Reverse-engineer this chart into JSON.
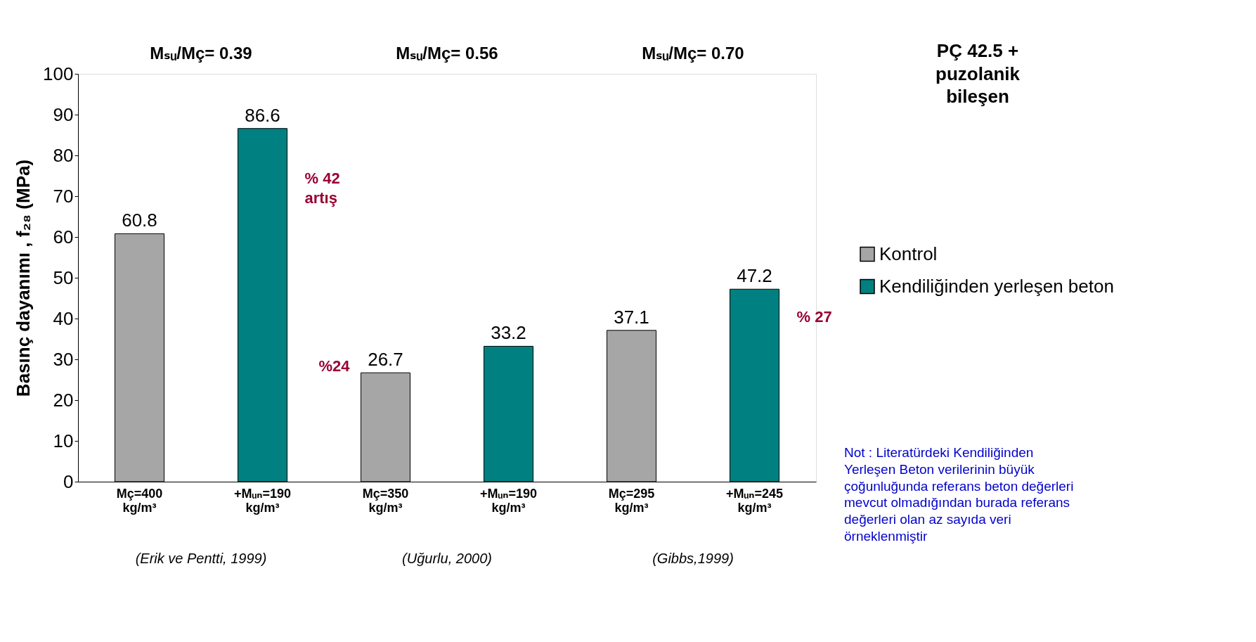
{
  "chart_data": {
    "type": "bar",
    "ylabel": "Basınç dayanımı , f₂₈  (MPa)",
    "categories": [
      "Mç=400 kg/m³",
      "+Mᵤₙ=190 kg/m³",
      "Mç=350 kg/m³",
      "+Mᵤₙ=190 kg/m³",
      "Mç=295 kg/m³",
      "+Mᵤₙ=245 kg/m³"
    ],
    "series": [
      {
        "name": "Kontrol",
        "color": "#a6a6a6",
        "values": [
          60.8,
          null,
          26.7,
          null,
          37.1,
          null
        ]
      },
      {
        "name": "Kendiliğinden yerleşen beton",
        "color": "#008080",
        "values": [
          null,
          86.6,
          null,
          33.2,
          null,
          47.2
        ]
      }
    ],
    "ylim": [
      0,
      100
    ],
    "yticks": [
      0,
      10,
      20,
      30,
      40,
      50,
      60,
      70,
      80,
      90,
      100
    ],
    "data_labels": true,
    "grid": false,
    "legend": "right",
    "annotations": [
      "Mₛᵤ/Mç= 0.39",
      "Mₛᵤ/Mç= 0.56",
      "Mₛᵤ/Mç= 0.70",
      "PÇ 42.5 + puzolanik bileşen",
      "% 42 artış",
      "%24",
      "% 27",
      "(Erik ve Pentti, 1999)",
      "(Uğurlu, 2000)",
      "(Gibbs,1999)",
      "Not : Literatürdeki Kendiliğinden Yerleşen Beton verilerinin büyük çoğunluğunda referans beton değerleri mevcut olmadığından burada referans değerleri olan az sayıda veri örneklenmiştir"
    ]
  }
}
